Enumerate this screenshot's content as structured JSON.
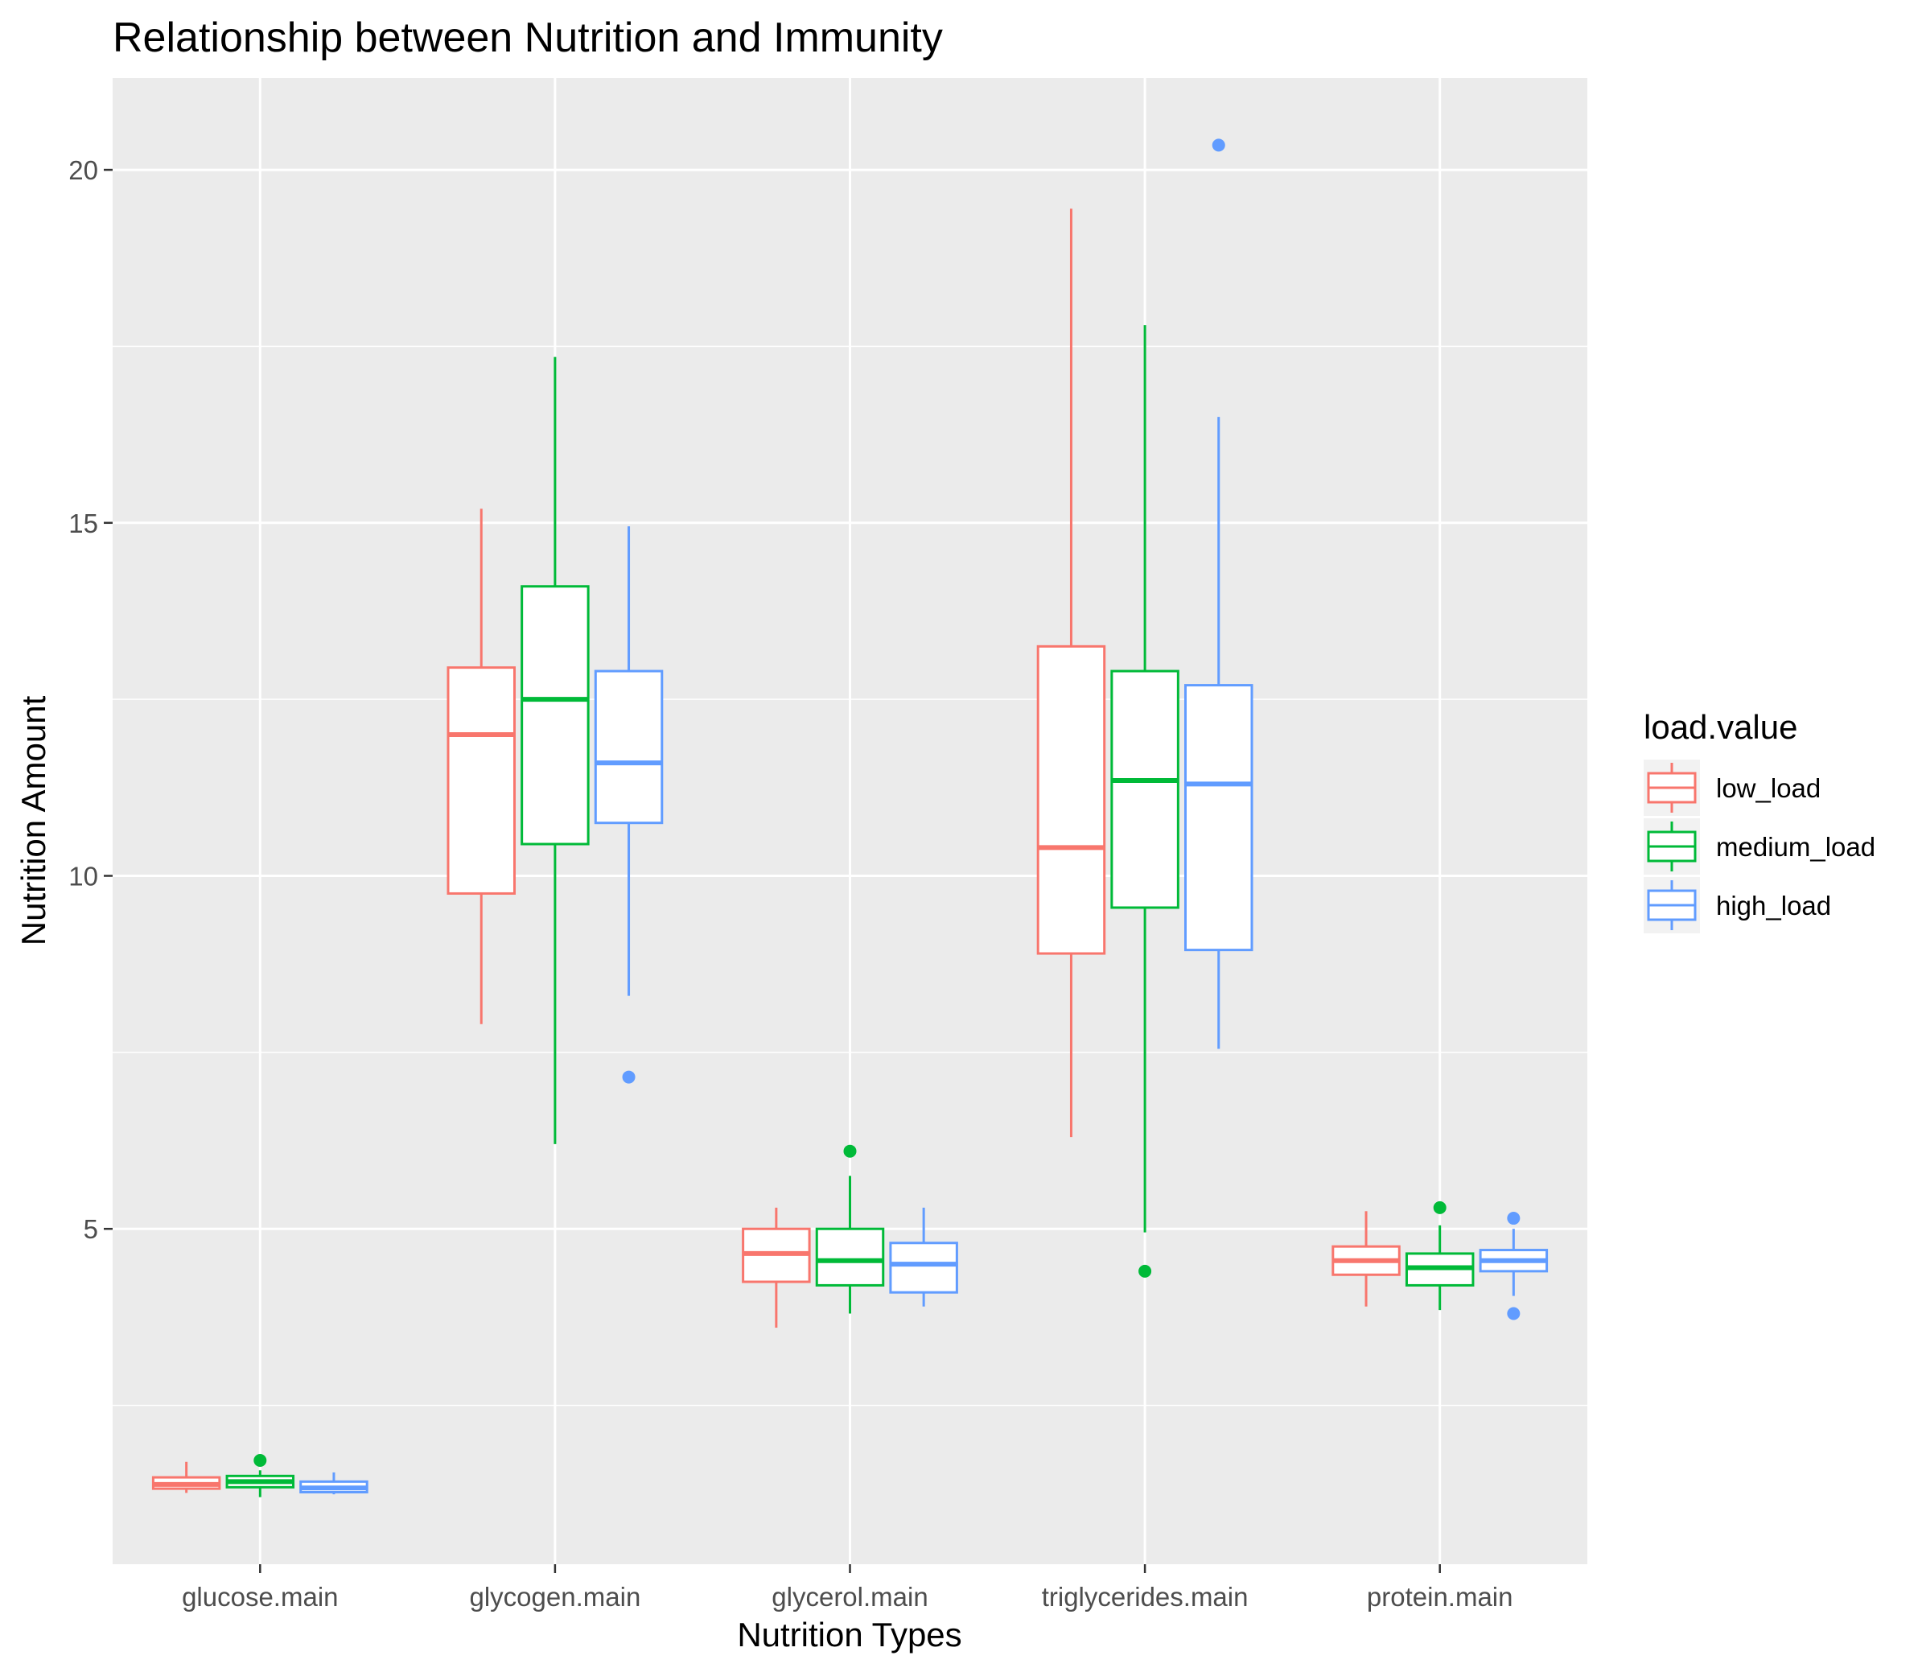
{
  "chart_data": {
    "type": "boxplot",
    "title": "Relationship between Nutrition and Immunity",
    "xlabel": "Nutrition Types",
    "ylabel": "Nutrition Amount",
    "categories": [
      "glucose.main",
      "glycogen.main",
      "glycerol.main",
      "triglycerides.main",
      "protein.main"
    ],
    "y_ticks": [
      5,
      10,
      15,
      20
    ],
    "ylim": [
      0.25,
      21.3
    ],
    "grid": true,
    "legend_title": "load.value",
    "legend_position": "right",
    "series": [
      {
        "name": "low_load",
        "color": "#F8766D",
        "boxes": [
          {
            "lower": 1.26,
            "q1": 1.32,
            "median": 1.38,
            "q3": 1.48,
            "upper": 1.7,
            "outliers": []
          },
          {
            "lower": 7.9,
            "q1": 9.75,
            "median": 12.0,
            "q3": 12.95,
            "upper": 15.2,
            "outliers": []
          },
          {
            "lower": 3.6,
            "q1": 4.25,
            "median": 4.65,
            "q3": 5.0,
            "upper": 5.3,
            "outliers": []
          },
          {
            "lower": 6.3,
            "q1": 8.9,
            "median": 10.4,
            "q3": 13.25,
            "upper": 19.45,
            "outliers": []
          },
          {
            "lower": 3.9,
            "q1": 4.35,
            "median": 4.55,
            "q3": 4.75,
            "upper": 5.25,
            "outliers": []
          }
        ]
      },
      {
        "name": "medium_load",
        "color": "#00BA38",
        "boxes": [
          {
            "lower": 1.2,
            "q1": 1.34,
            "median": 1.42,
            "q3": 1.5,
            "upper": 1.58,
            "outliers": [
              1.72
            ]
          },
          {
            "lower": 6.2,
            "q1": 10.45,
            "median": 12.5,
            "q3": 14.1,
            "upper": 17.35,
            "outliers": []
          },
          {
            "lower": 3.8,
            "q1": 4.2,
            "median": 4.55,
            "q3": 5.0,
            "upper": 5.75,
            "outliers": [
              6.1
            ]
          },
          {
            "lower": 4.95,
            "q1": 9.55,
            "median": 11.35,
            "q3": 12.9,
            "upper": 17.8,
            "outliers": [
              4.4
            ]
          },
          {
            "lower": 3.85,
            "q1": 4.2,
            "median": 4.45,
            "q3": 4.65,
            "upper": 5.05,
            "outliers": [
              5.3
            ]
          }
        ]
      },
      {
        "name": "high_load",
        "color": "#619CFF",
        "boxes": [
          {
            "lower": 1.24,
            "q1": 1.27,
            "median": 1.33,
            "q3": 1.42,
            "upper": 1.55,
            "outliers": []
          },
          {
            "lower": 8.3,
            "q1": 10.75,
            "median": 11.6,
            "q3": 12.9,
            "upper": 14.95,
            "outliers": [
              7.15
            ]
          },
          {
            "lower": 3.9,
            "q1": 4.1,
            "median": 4.5,
            "q3": 4.8,
            "upper": 5.3,
            "outliers": []
          },
          {
            "lower": 7.55,
            "q1": 8.95,
            "median": 11.3,
            "q3": 12.7,
            "upper": 16.5,
            "outliers": [
              20.35
            ]
          },
          {
            "lower": 4.05,
            "q1": 4.4,
            "median": 4.55,
            "q3": 4.7,
            "upper": 5.0,
            "outliers": [
              5.15,
              3.8
            ]
          }
        ]
      }
    ]
  }
}
